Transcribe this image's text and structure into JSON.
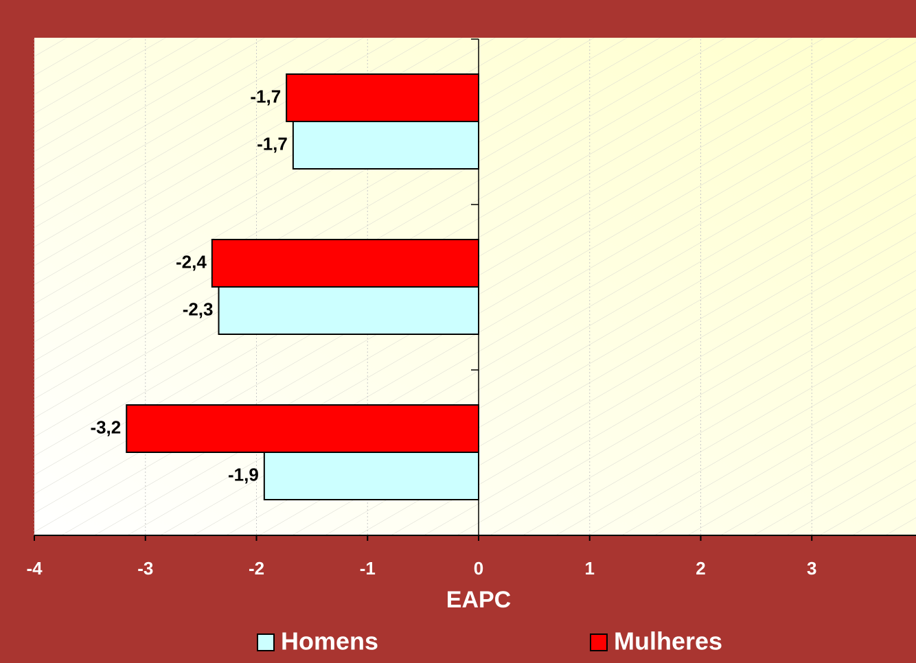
{
  "chart_data": {
    "type": "bar",
    "orientation": "horizontal",
    "categories": [
      null,
      null,
      null
    ],
    "series": [
      {
        "name": "Homens",
        "color": "#ccffff",
        "values": [
          -1.67,
          -2.34,
          -1.93
        ],
        "value_labels": [
          "-1,7",
          "-2,3",
          "-1,9"
        ]
      },
      {
        "name": "Mulheres",
        "color": "#ff0000",
        "values": [
          -1.73,
          -2.4,
          -3.17
        ],
        "value_labels": [
          "-1,7",
          "-2,4",
          "-3,2"
        ]
      }
    ],
    "x_label": "EAPC",
    "xlim": [
      -4,
      4
    ],
    "xticks": [
      -4,
      -3,
      -2,
      -1,
      0,
      1,
      2,
      3
    ],
    "grid": true,
    "legend": "bottom"
  }
}
